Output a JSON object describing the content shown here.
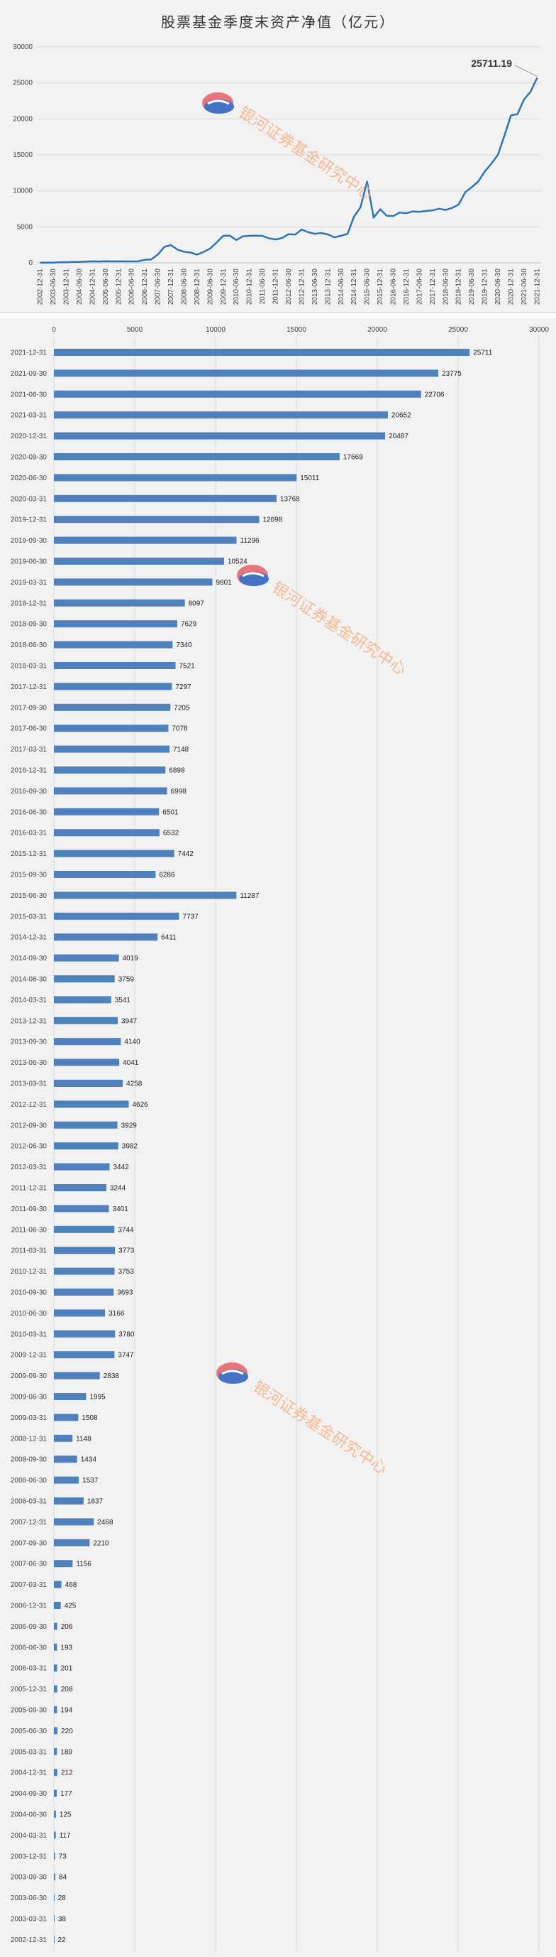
{
  "chart_data": [
    {
      "type": "line",
      "title": "股票基金季度末资产净值（亿元）",
      "ylim": [
        0,
        30000
      ],
      "yticks": [
        0,
        5000,
        10000,
        15000,
        20000,
        25000,
        30000
      ],
      "grid": true,
      "color": "#2e75b6",
      "annotation": "25711.19",
      "x": [
        "2002-12-31",
        "2003-03-31",
        "2003-06-30",
        "2003-09-30",
        "2003-12-31",
        "2004-03-31",
        "2004-06-30",
        "2004-09-30",
        "2004-12-31",
        "2005-03-31",
        "2005-06-30",
        "2005-09-30",
        "2005-12-31",
        "2006-03-31",
        "2006-06-30",
        "2006-09-30",
        "2006-12-31",
        "2007-03-31",
        "2007-06-30",
        "2007-09-30",
        "2007-12-31",
        "2008-03-31",
        "2008-06-30",
        "2008-09-30",
        "2008-12-31",
        "2009-03-31",
        "2009-06-30",
        "2009-09-30",
        "2009-12-31",
        "2010-03-31",
        "2010-06-30",
        "2010-09-30",
        "2010-12-31",
        "2011-03-31",
        "2011-06-30",
        "2011-09-30",
        "2011-12-31",
        "2012-03-31",
        "2012-06-30",
        "2012-09-30",
        "2012-12-31",
        "2013-03-31",
        "2013-06-30",
        "2013-09-30",
        "2013-12-31",
        "2014-03-31",
        "2014-06-30",
        "2014-09-30",
        "2014-12-31",
        "2015-03-31",
        "2015-06-30",
        "2015-09-30",
        "2015-12-31",
        "2016-03-31",
        "2016-06-30",
        "2016-09-30",
        "2016-12-31",
        "2017-03-31",
        "2017-06-30",
        "2017-09-30",
        "2017-12-31",
        "2018-03-31",
        "2018-06-30",
        "2018-09-30",
        "2018-12-31",
        "2019-03-31",
        "2019-06-30",
        "2019-09-30",
        "2019-12-31",
        "2020-03-31",
        "2020-06-30",
        "2020-09-30",
        "2020-12-31",
        "2021-03-31",
        "2021-06-30",
        "2021-09-30",
        "2021-12-31"
      ],
      "values": [
        22,
        38,
        28,
        84,
        73,
        117,
        125,
        177,
        212,
        189,
        220,
        194,
        208,
        201,
        193,
        206,
        425,
        468,
        1156,
        2210,
        2468,
        1837,
        1537,
        1434,
        1148,
        1508,
        1995,
        2838,
        3747,
        3780,
        3166,
        3693,
        3753,
        3773,
        3744,
        3401,
        3244,
        3442,
        3982,
        3929,
        4626,
        4258,
        4041,
        4140,
        3947,
        3541,
        3759,
        4019,
        6411,
        7737,
        11287,
        6286,
        7442,
        6532,
        6501,
        6998,
        6898,
        7148,
        7078,
        7205,
        7297,
        7521,
        7340,
        7629,
        8097,
        9801,
        10524,
        11296,
        12698,
        13768,
        15011,
        17669,
        20487,
        20652,
        22706,
        23775,
        25711.19
      ]
    },
    {
      "type": "bar",
      "orientation": "horizontal",
      "xlim": [
        0,
        30000
      ],
      "xticks": [
        0,
        5000,
        10000,
        15000,
        20000,
        25000,
        30000
      ],
      "grid": true,
      "color": "#4f81bd",
      "categories": [
        "2021-12-31",
        "2021-09-30",
        "2021-06-30",
        "2021-03-31",
        "2020-12-31",
        "2020-09-30",
        "2020-06-30",
        "2020-03-31",
        "2019-12-31",
        "2019-09-30",
        "2019-06-30",
        "2019-03-31",
        "2018-12-31",
        "2018-09-30",
        "2018-06-30",
        "2018-03-31",
        "2017-12-31",
        "2017-09-30",
        "2017-06-30",
        "2017-03-31",
        "2016-12-31",
        "2016-09-30",
        "2016-06-30",
        "2016-03-31",
        "2015-12-31",
        "2015-09-30",
        "2015-06-30",
        "2015-03-31",
        "2014-12-31",
        "2014-09-30",
        "2014-06-30",
        "2014-03-31",
        "2013-12-31",
        "2013-09-30",
        "2013-06-30",
        "2013-03-31",
        "2012-12-31",
        "2012-09-30",
        "2012-06-30",
        "2012-03-31",
        "2011-12-31",
        "2011-09-30",
        "2011-06-30",
        "2011-03-31",
        "2010-12-31",
        "2010-09-30",
        "2010-06-30",
        "2010-03-31",
        "2009-12-31",
        "2009-09-30",
        "2009-06-30",
        "2009-03-31",
        "2008-12-31",
        "2008-09-30",
        "2008-06-30",
        "2008-03-31",
        "2007-12-31",
        "2007-09-30",
        "2007-06-30",
        "2007-03-31",
        "2006-12-31",
        "2006-09-30",
        "2006-06-30",
        "2006-03-31",
        "2005-12-31",
        "2005-09-30",
        "2005-06-30",
        "2005-03-31",
        "2004-12-31",
        "2004-09-30",
        "2004-06-30",
        "2004-03-31",
        "2003-12-31",
        "2003-09-30",
        "2003-06-30",
        "2003-03-31",
        "2002-12-31"
      ],
      "values": [
        25711,
        23775,
        22706,
        20652,
        20487,
        17669,
        15011,
        13768,
        12698,
        11296,
        10524,
        9801,
        8097,
        7629,
        7340,
        7521,
        7297,
        7205,
        7078,
        7148,
        6898,
        6998,
        6501,
        6532,
        7442,
        6286,
        11287,
        7737,
        6411,
        4019,
        3759,
        3541,
        3947,
        4140,
        4041,
        4258,
        4626,
        3929,
        3982,
        3442,
        3244,
        3401,
        3744,
        3773,
        3753,
        3693,
        3166,
        3780,
        3747,
        2838,
        1995,
        1508,
        1148,
        1434,
        1537,
        1837,
        2468,
        2210,
        1156,
        468,
        425,
        206,
        193,
        201,
        208,
        194,
        220,
        189,
        212,
        177,
        125,
        117,
        73,
        84,
        28,
        38,
        22
      ]
    }
  ],
  "watermark": {
    "text": "银河证券基金研究中心",
    "logo": "galaxy-securities-logo",
    "text_color": "#f4b183",
    "logo_colors": [
      "#e8747c",
      "#4472c4"
    ]
  }
}
